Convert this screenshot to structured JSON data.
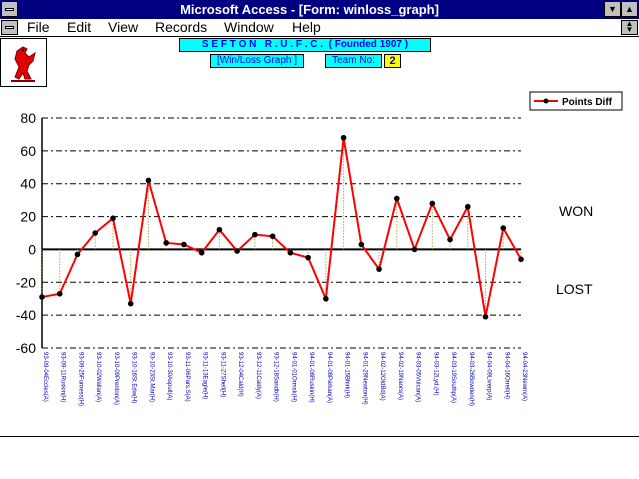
{
  "window": {
    "title": "Microsoft Access - [Form: winloss_graph]"
  },
  "menu": {
    "items": [
      "File",
      "Edit",
      "View",
      "Records",
      "Window",
      "Help"
    ]
  },
  "header": {
    "club": "S E F T O N   R . U . F . C .  ( Founded 1907 )",
    "graph_label": "[Win/Loss Graph ]",
    "team_label": "Team No:",
    "team_no": "2"
  },
  "labels": {
    "won": "WON",
    "lost": "LOST"
  },
  "colors": {
    "line": "#ff0000",
    "marker": "#000000",
    "xlabel": "#0000c0",
    "panel": "#00ffff"
  },
  "chart_data": {
    "type": "line",
    "title": "",
    "xlabel": "",
    "ylabel": "",
    "ylim": [
      -60,
      80
    ],
    "yticks": [
      80,
      60,
      40,
      20,
      0,
      -20,
      -40,
      -60
    ],
    "grid": true,
    "legend": "top-right",
    "series": [
      {
        "name": "Points Diff",
        "values": [
          -29,
          -27,
          -3,
          10,
          19,
          -33,
          42,
          4,
          3,
          -2,
          12,
          -1,
          9,
          8,
          -2,
          -5,
          -30,
          68,
          3,
          -12,
          31,
          0,
          28,
          6,
          26,
          -41,
          13,
          -6
        ]
      }
    ],
    "x": [
      "93-09-04Eccles(A)",
      "93-09-11Ruskin(H)",
      "93-09-25Furness(H)",
      "93-10-02Wallan(A)",
      "93-10-09Prenton(A)",
      "93-10-16St.Edw(H)",
      "93-10-23St.Mar(H)",
      "93-10-30Aspull(A)",
      "93-11-06Pars.S(A)",
      "93-11-13Eagle(H)",
      "93-11-27Shell(H)",
      "93-12-04Cald(H)",
      "93-12-11Caldy(A)",
      "93-12-18Sandb(H)",
      "94-01-01Ormsk(H)",
      "94-01-08Ruskin(H)",
      "94-01-08Parkan(A)",
      "94-01-15Bhirk(H)",
      "94-01-29Newton(H)",
      "94-02-12OldBd(A)",
      "94-02-19Naors(A)",
      "94-03-05Vulcan(A)",
      "94-03-12Lyd.(H)",
      "94-03-19Southp(A)",
      "94-03-26Bowden(H)",
      "94-04-09Liverp(A)",
      "94-04-16Orrell(H)",
      "94-04-23Newm(A)"
    ]
  }
}
